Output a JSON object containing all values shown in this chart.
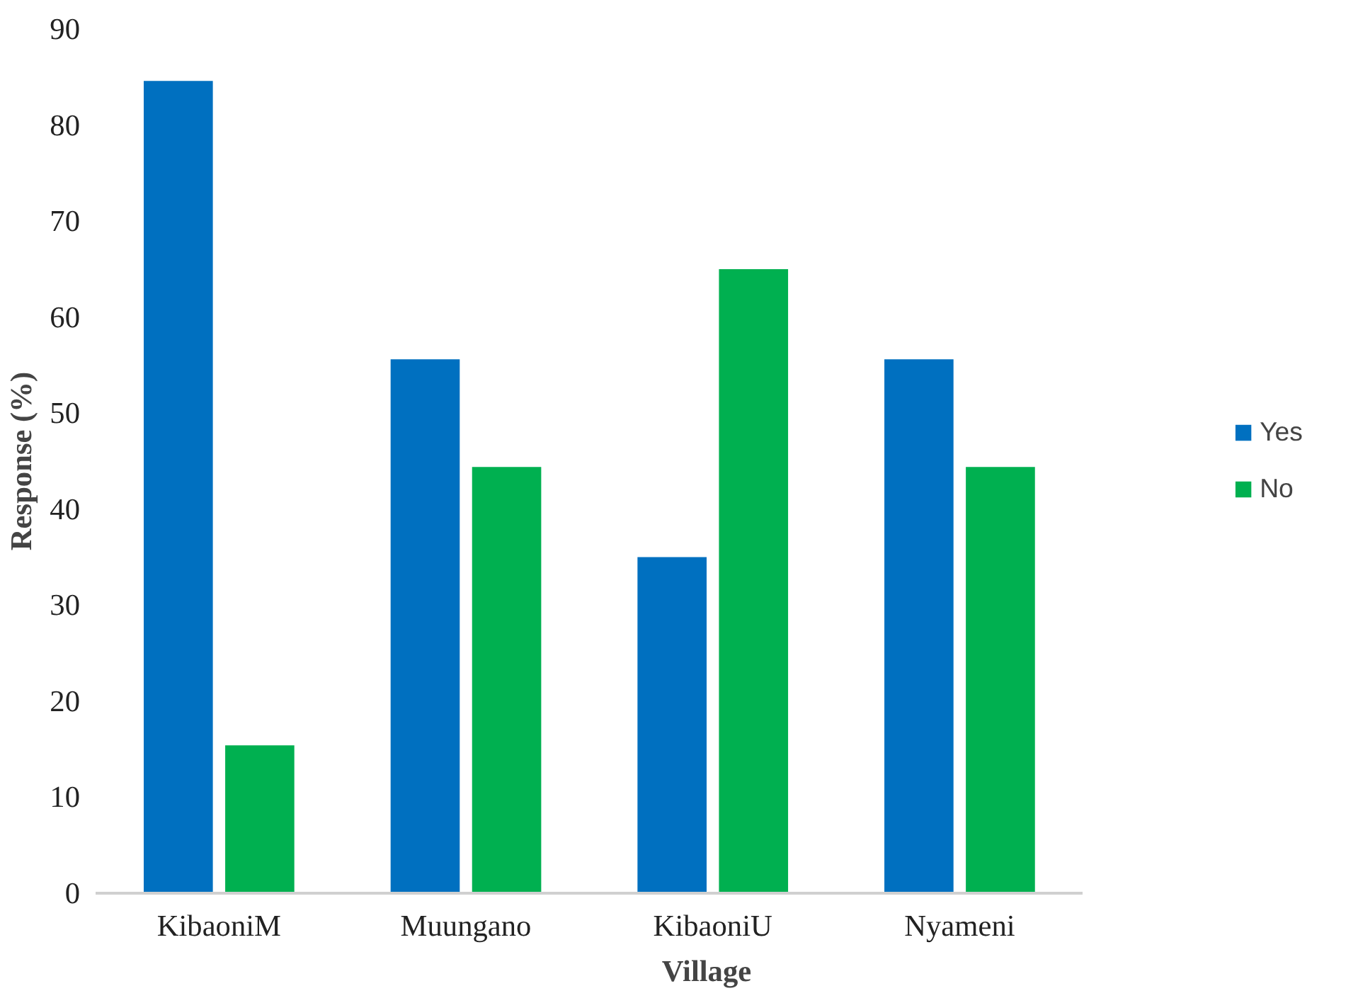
{
  "chart_data": {
    "type": "bar",
    "xlabel": "Village",
    "ylabel": "Response (%)",
    "categories": [
      "KibaoniM",
      "Muungano",
      "KibaoniU",
      "Nyameni"
    ],
    "series": [
      {
        "name": "Yes",
        "color": "#0070c0",
        "values": [
          84.6,
          55.6,
          35.0,
          55.6
        ]
      },
      {
        "name": "No",
        "color": "#00b050",
        "values": [
          15.4,
          44.4,
          65.0,
          44.4
        ]
      }
    ],
    "ylim": [
      0,
      90
    ],
    "yticks": [
      0,
      10,
      20,
      30,
      40,
      50,
      60,
      70,
      80,
      90
    ],
    "grid": false,
    "legend": "right"
  }
}
